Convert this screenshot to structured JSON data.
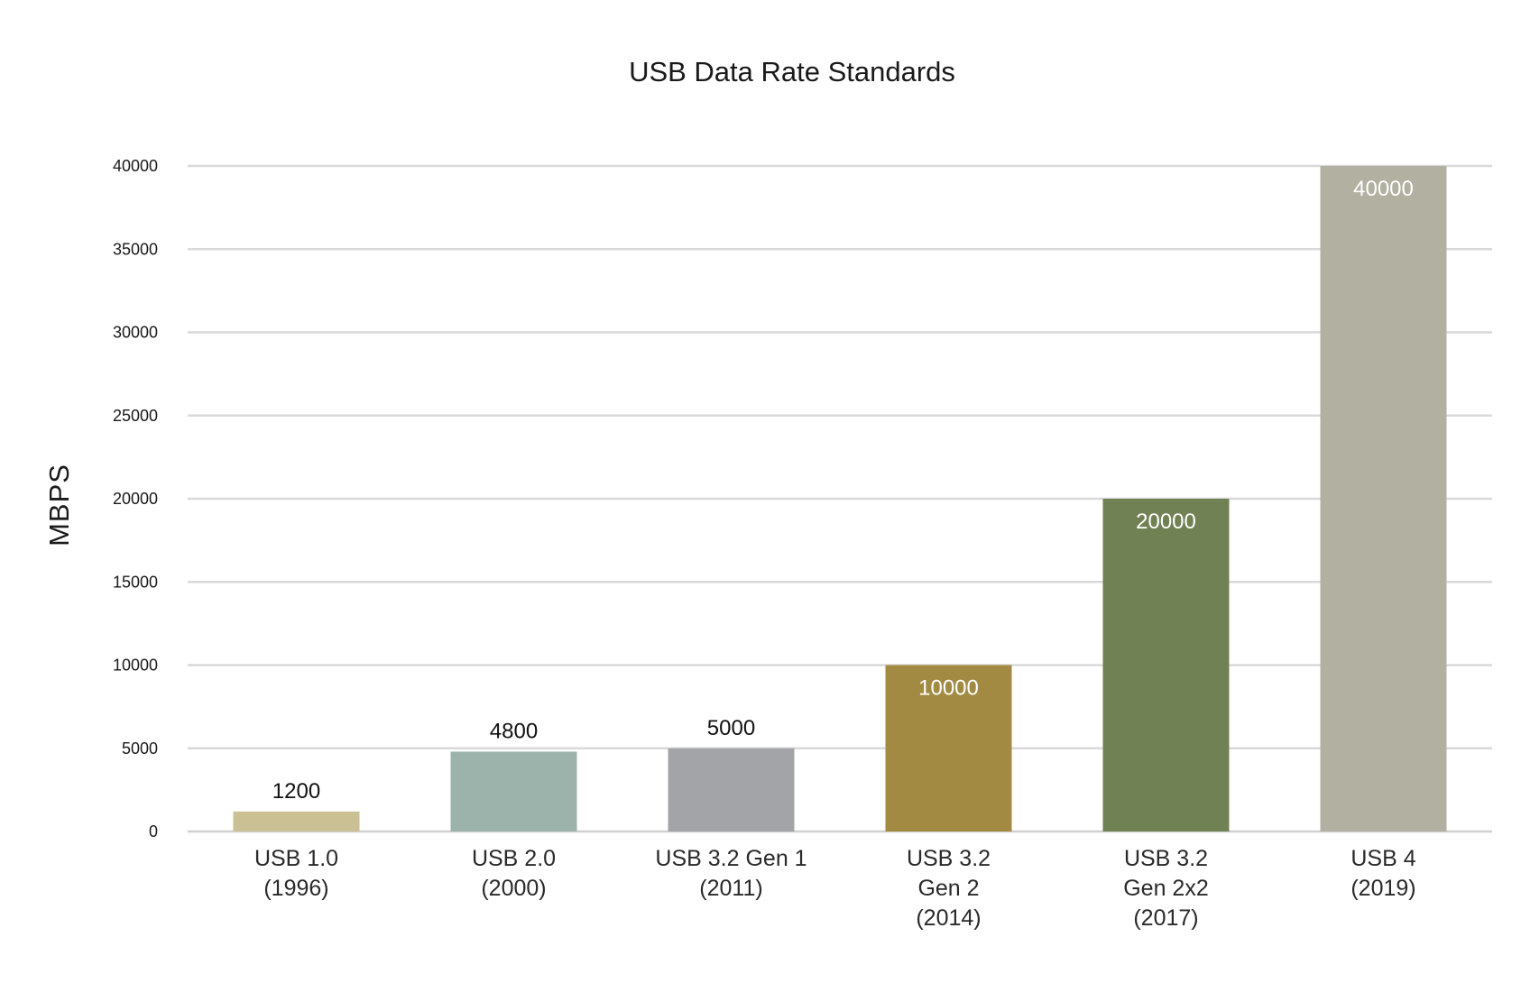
{
  "chart_data": {
    "type": "bar",
    "title": "USB Data Rate Standards",
    "xlabel": "",
    "ylabel": "MBPS",
    "ylim": [
      0,
      40000
    ],
    "yticks": [
      0,
      5000,
      10000,
      15000,
      20000,
      25000,
      30000,
      35000,
      40000
    ],
    "grid": true,
    "legend": "none",
    "categories": [
      [
        "USB 1.0",
        "(1996)"
      ],
      [
        "USB 2.0",
        "(2000)"
      ],
      [
        "USB 3.2 Gen 1",
        "(2011)"
      ],
      [
        "USB 3.2",
        "Gen 2",
        "(2014)"
      ],
      [
        "USB 3.2",
        "Gen 2x2",
        "(2017)"
      ],
      [
        "USB 4",
        "(2019)"
      ]
    ],
    "values": [
      1200,
      4800,
      5000,
      10000,
      20000,
      40000
    ],
    "data_labels": [
      "1200",
      "4800",
      "5000",
      "10000",
      "20000",
      "40000"
    ],
    "bar_colors": [
      "#cbbf94",
      "#9cb3ac",
      "#a3a4a7",
      "#a38a43",
      "#708253",
      "#b2b0a1"
    ],
    "label_inside": [
      false,
      false,
      false,
      true,
      true,
      true
    ],
    "grid_color": "#d9d9d9",
    "axis_color": "#d0d0d0"
  }
}
